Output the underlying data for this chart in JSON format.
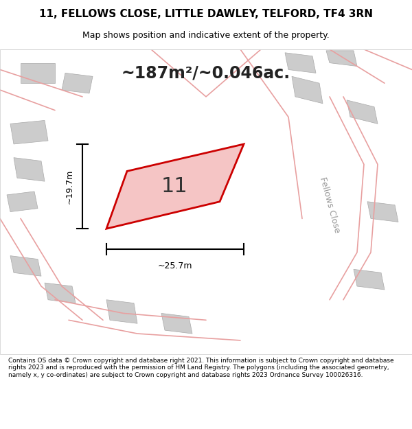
{
  "title_line1": "11, FELLOWS CLOSE, LITTLE DAWLEY, TELFORD, TF4 3RN",
  "title_line2": "Map shows position and indicative extent of the property.",
  "area_text": "~187m²/~0.046ac.",
  "label_number": "11",
  "dim_width": "~25.7m",
  "dim_height": "~19.7m",
  "road_label": "Fellows Close",
  "footer_text": "Contains OS data © Crown copyright and database right 2021. This information is subject to Crown copyright and database rights 2023 and is reproduced with the permission of HM Land Registry. The polygons (including the associated geometry, namely x, y co-ordinates) are subject to Crown copyright and database rights 2023 Ordnance Survey 100026316.",
  "bg_color": "#f0ede8",
  "map_bg": "#f0ede8",
  "plot_fill": "#f5c5c5",
  "plot_edge": "#cc0000",
  "road_color": "#e8a0a0",
  "building_color": "#cccccc",
  "dim_line_color": "#000000",
  "title_bg": "#ffffff",
  "footer_bg": "#ffffff"
}
